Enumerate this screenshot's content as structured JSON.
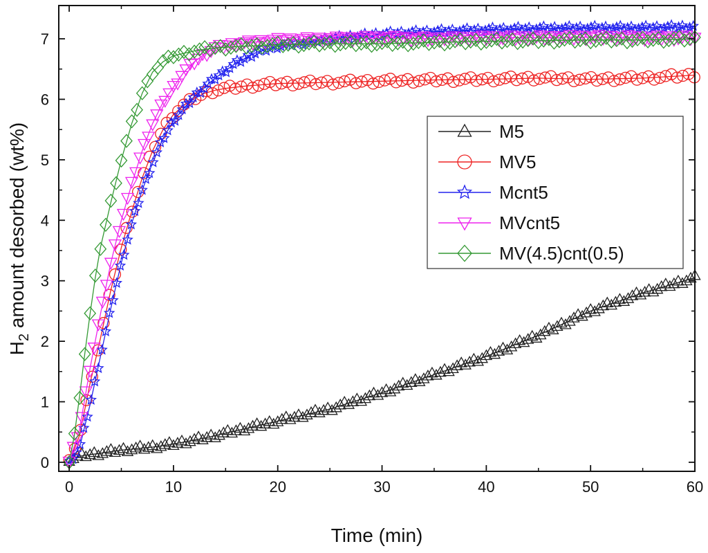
{
  "chart_data": {
    "type": "line",
    "title": "",
    "xlabel": "Time (min)",
    "ylabel_main": "H",
    "ylabel_sub": "2",
    "ylabel_rest": " amount desorbed (wt%)",
    "xlim": [
      -1,
      60
    ],
    "ylim": [
      -0.15,
      7.55
    ],
    "xticks": [
      0,
      10,
      20,
      30,
      40,
      50,
      60
    ],
    "yticks": [
      0,
      1,
      2,
      3,
      4,
      5,
      6,
      7
    ],
    "grid": false,
    "legend_position": "right",
    "series": [
      {
        "name": "M5",
        "color": "#222222",
        "marker": "triangle-up",
        "points": [
          [
            0,
            0.05
          ],
          [
            1,
            0.1
          ],
          [
            3,
            0.15
          ],
          [
            5,
            0.2
          ],
          [
            8,
            0.25
          ],
          [
            10,
            0.3
          ],
          [
            13,
            0.4
          ],
          [
            16,
            0.52
          ],
          [
            20,
            0.68
          ],
          [
            25,
            0.88
          ],
          [
            30,
            1.15
          ],
          [
            35,
            1.45
          ],
          [
            40,
            1.75
          ],
          [
            45,
            2.1
          ],
          [
            50,
            2.5
          ],
          [
            55,
            2.8
          ],
          [
            60,
            3.05
          ]
        ]
      },
      {
        "name": "MV5",
        "color": "#ee2222",
        "marker": "circle",
        "points": [
          [
            0,
            0.0
          ],
          [
            1,
            0.45
          ],
          [
            2,
            1.3
          ],
          [
            3,
            2.05
          ],
          [
            4,
            2.85
          ],
          [
            5,
            3.55
          ],
          [
            6,
            4.15
          ],
          [
            7,
            4.7
          ],
          [
            8,
            5.15
          ],
          [
            9,
            5.5
          ],
          [
            10,
            5.75
          ],
          [
            11,
            5.9
          ],
          [
            12,
            6.02
          ],
          [
            13,
            6.1
          ],
          [
            14,
            6.15
          ],
          [
            15,
            6.18
          ],
          [
            17,
            6.22
          ],
          [
            20,
            6.26
          ],
          [
            25,
            6.28
          ],
          [
            30,
            6.3
          ],
          [
            35,
            6.32
          ],
          [
            40,
            6.33
          ],
          [
            45,
            6.35
          ],
          [
            50,
            6.33
          ],
          [
            55,
            6.35
          ],
          [
            60,
            6.4
          ]
        ]
      },
      {
        "name": "Mcnt5",
        "color": "#2222ee",
        "marker": "star",
        "points": [
          [
            0,
            0.0
          ],
          [
            1,
            0.25
          ],
          [
            2,
            0.95
          ],
          [
            3,
            1.75
          ],
          [
            4,
            2.55
          ],
          [
            5,
            3.3
          ],
          [
            6,
            3.95
          ],
          [
            7,
            4.5
          ],
          [
            8,
            4.95
          ],
          [
            9,
            5.35
          ],
          [
            10,
            5.65
          ],
          [
            12,
            6.05
          ],
          [
            14,
            6.35
          ],
          [
            16,
            6.6
          ],
          [
            18,
            6.78
          ],
          [
            20,
            6.88
          ],
          [
            25,
            7.0
          ],
          [
            30,
            7.08
          ],
          [
            35,
            7.12
          ],
          [
            40,
            7.15
          ],
          [
            45,
            7.17
          ],
          [
            50,
            7.18
          ],
          [
            55,
            7.18
          ],
          [
            60,
            7.2
          ]
        ]
      },
      {
        "name": "MVcnt5",
        "color": "#ee22ee",
        "marker": "triangle-down",
        "points": [
          [
            0,
            0.0
          ],
          [
            1,
            0.55
          ],
          [
            2,
            1.55
          ],
          [
            3,
            2.45
          ],
          [
            4,
            3.3
          ],
          [
            5,
            4.0
          ],
          [
            6,
            4.6
          ],
          [
            7,
            5.15
          ],
          [
            8,
            5.6
          ],
          [
            9,
            5.95
          ],
          [
            10,
            6.2
          ],
          [
            11,
            6.45
          ],
          [
            12,
            6.62
          ],
          [
            13,
            6.75
          ],
          [
            14,
            6.85
          ],
          [
            16,
            6.92
          ],
          [
            20,
            6.98
          ],
          [
            25,
            7.0
          ],
          [
            30,
            7.02
          ],
          [
            35,
            7.0
          ],
          [
            40,
            7.02
          ],
          [
            45,
            7.02
          ],
          [
            50,
            7.03
          ],
          [
            55,
            7.02
          ],
          [
            60,
            7.02
          ]
        ]
      },
      {
        "name": "MV(4.5)cnt(0.5)",
        "color": "#339933",
        "marker": "diamond",
        "points": [
          [
            0,
            0.0
          ],
          [
            0.5,
            0.45
          ],
          [
            1,
            1.1
          ],
          [
            1.5,
            1.8
          ],
          [
            2,
            2.45
          ],
          [
            2.5,
            3.05
          ],
          [
            3,
            3.55
          ],
          [
            4,
            4.3
          ],
          [
            5,
            5.0
          ],
          [
            6,
            5.6
          ],
          [
            7,
            6.1
          ],
          [
            8,
            6.45
          ],
          [
            9,
            6.62
          ],
          [
            10,
            6.72
          ],
          [
            12,
            6.8
          ],
          [
            14,
            6.85
          ],
          [
            17,
            6.88
          ],
          [
            20,
            6.9
          ],
          [
            25,
            6.92
          ],
          [
            30,
            6.92
          ],
          [
            35,
            6.94
          ],
          [
            40,
            6.96
          ],
          [
            45,
            6.97
          ],
          [
            50,
            6.98
          ],
          [
            55,
            6.98
          ],
          [
            60,
            7.0
          ]
        ]
      }
    ]
  }
}
